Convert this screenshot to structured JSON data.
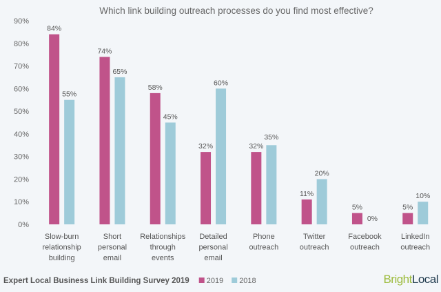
{
  "chart_data": {
    "type": "bar",
    "title": "Which link building outreach processes do you find most effective?",
    "categories": [
      [
        "Slow-burn",
        "relationship",
        "building"
      ],
      [
        "Short",
        "personal",
        "email"
      ],
      [
        "Relationships",
        "through",
        "events"
      ],
      [
        "Detailed",
        "personal",
        "email"
      ],
      [
        "Phone",
        "outreach"
      ],
      [
        "Twitter",
        "outreach"
      ],
      [
        "Facebook",
        "outreach"
      ],
      [
        "LinkedIn",
        "outreach"
      ]
    ],
    "series": [
      {
        "name": "2019",
        "color": "#c0538a",
        "values": [
          84,
          74,
          58,
          32,
          32,
          11,
          5,
          5
        ]
      },
      {
        "name": "2018",
        "color": "#9ecbd9",
        "values": [
          55,
          65,
          45,
          60,
          35,
          20,
          0,
          10
        ]
      }
    ],
    "ylim": [
      0,
      90
    ],
    "yticks": [
      "0%",
      "10%",
      "20%",
      "30%",
      "40%",
      "50%",
      "60%",
      "70%",
      "80%",
      "90%"
    ],
    "ytick_values": [
      0,
      10,
      20,
      30,
      40,
      50,
      60,
      70,
      80,
      90
    ],
    "value_suffix": "%",
    "grid": false,
    "legend_position": "bottom"
  },
  "footer": {
    "source": "Expert Local Business Link Building Survey 2019",
    "logo_bright": "Bright",
    "logo_local": "Local"
  }
}
